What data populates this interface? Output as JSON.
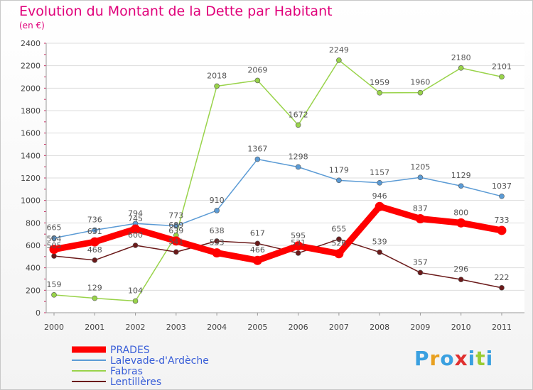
{
  "chart_data": {
    "type": "line",
    "title": "Evolution du Montant de la Dette par Habitant",
    "subtitle": "(en €)",
    "categories": [
      "2000",
      "2001",
      "2002",
      "2003",
      "2004",
      "2005",
      "2006",
      "2007",
      "2008",
      "2009",
      "2010",
      "2011"
    ],
    "ylim": [
      0,
      2400
    ],
    "yticks": [
      0,
      200,
      400,
      600,
      800,
      1000,
      1200,
      1400,
      1600,
      1800,
      2000,
      2200,
      2400
    ],
    "grid": "horizontal",
    "legend_position": "bottom-left",
    "series": [
      {
        "name": "PRADES",
        "color": "#ff0000",
        "values": [
          564,
          631,
          745,
          639,
          533,
          466,
          595,
          526,
          946,
          837,
          800,
          733
        ]
      },
      {
        "name": "Lalevade-d'Ardèche",
        "color": "#5b9bd5",
        "values": [
          665,
          736,
          794,
          773,
          910,
          1367,
          1298,
          1179,
          1157,
          1205,
          1129,
          1037
        ]
      },
      {
        "name": "Fabras",
        "color": "#99d34a",
        "values": [
          159,
          129,
          104,
          689,
          2018,
          2069,
          1672,
          2249,
          1959,
          1960,
          2180,
          2101
        ]
      },
      {
        "name": "Lentillères",
        "color": "#6b1a1a",
        "values": [
          505,
          468,
          600,
          541,
          638,
          617,
          531,
          655,
          539,
          357,
          296,
          222
        ]
      }
    ]
  },
  "logo": {
    "letters": [
      "P",
      "r",
      "o",
      "x",
      "i",
      "t",
      "i"
    ],
    "colors": [
      "#3aa0e0",
      "#e8a020",
      "#3aa0e0",
      "#e03030",
      "#3aa0e0",
      "#99cc33",
      "#3aa0e0"
    ]
  }
}
